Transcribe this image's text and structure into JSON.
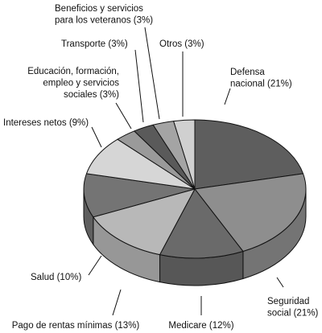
{
  "chart_data": {
    "type": "pie",
    "three_d": true,
    "title": "",
    "unit": "%",
    "slices": [
      {
        "label": [
          "Defensa",
          "nacional (21%)"
        ],
        "value": 21,
        "color": "#5e5e5e"
      },
      {
        "label": [
          "Seguridad",
          "social (21%)"
        ],
        "value": 21,
        "color": "#8e8e8e"
      },
      {
        "label": [
          "Medicare (12%)"
        ],
        "value": 12,
        "color": "#6a6a6a"
      },
      {
        "label": [
          "Pago de rentas mínimas (13%)"
        ],
        "value": 13,
        "color": "#b8b8b8"
      },
      {
        "label": [
          "Salud (10%)"
        ],
        "value": 10,
        "color": "#747474"
      },
      {
        "label": [
          "Intereses netos (9%)"
        ],
        "value": 9,
        "color": "#d6d6d6"
      },
      {
        "label": [
          "Educación, formación,",
          "empleo y servicios",
          "sociales (3%)"
        ],
        "value": 3,
        "color": "#9a9a9a"
      },
      {
        "label": [
          "Transporte (3%)"
        ],
        "value": 3,
        "color": "#5a5a5a"
      },
      {
        "label": [
          "Beneficios y servicios",
          "para los veteranos (3%)"
        ],
        "value": 3,
        "color": "#a4a4a4"
      },
      {
        "label": [
          "Otros (3%)"
        ],
        "value": 3,
        "color": "#d0d0d0"
      }
    ]
  }
}
